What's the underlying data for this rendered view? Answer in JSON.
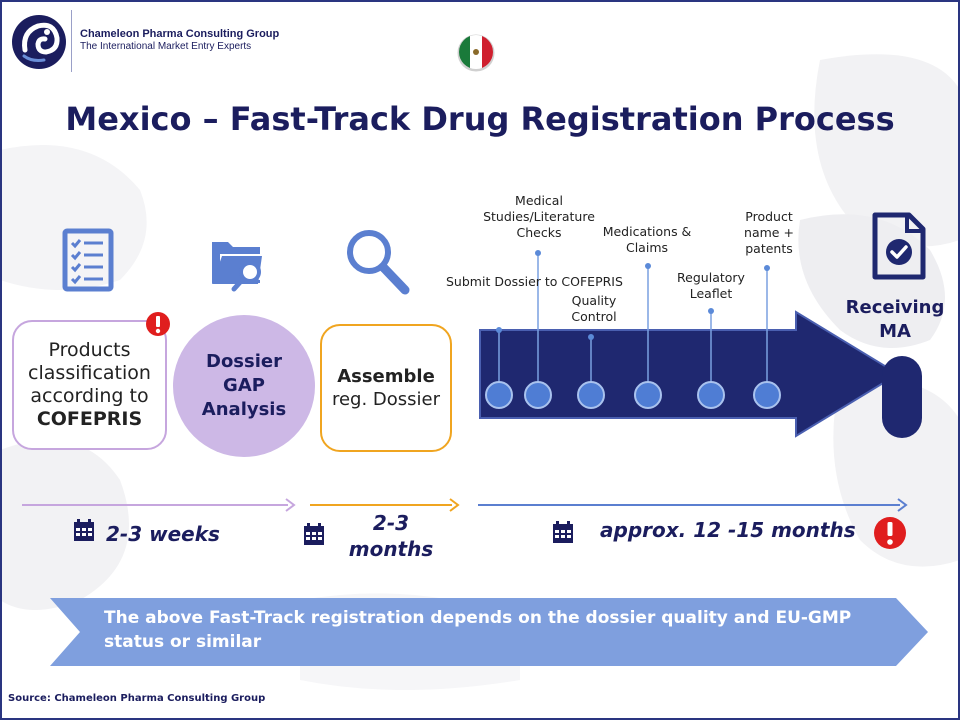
{
  "header": {
    "company_name": "Chameleon Pharma Consulting Group",
    "company_tagline": "The International Market Entry Experts"
  },
  "title": "Mexico – Fast-Track Drug Registration Process",
  "steps": [
    {
      "pre": "Products classification according to ",
      "bold": "COFEPRIS"
    },
    {
      "label": "Dossier GAP Analysis"
    },
    {
      "bold": "Assemble",
      "rest": "reg. Dossier"
    }
  ],
  "milestones": [
    "Submit Dossier to COFEPRIS",
    "Medical Studies/Literature Checks",
    "Quality Control",
    "Medications & Claims",
    "Regulatory Leaflet",
    "Product name + patents"
  ],
  "final_step": "Receiving MA",
  "durations": [
    "2-3 weeks",
    "2-3 months",
    "approx. 12 -15 months"
  ],
  "note": "The above Fast-Track registration depends on the dossier quality and EU-GMP status or similar",
  "source": "Source: Chameleon Pharma Consulting Group",
  "colors": {
    "navy": "#1b1d5e",
    "arrow": "#1f2870",
    "lavender": "#cdb8e6",
    "lavender_line": "#c6a6de",
    "orange": "#f0a520",
    "blue_dot": "#4f7dd4",
    "note_bg": "#7f9fde",
    "alert_red": "#e01e1e",
    "icon_blue": "#5b7fd0"
  },
  "icons": [
    "checklist-icon",
    "folder-search-icon",
    "magnifier-icon",
    "document-check-icon",
    "calendar-icon",
    "alert-icon",
    "mexico-flag-icon"
  ]
}
